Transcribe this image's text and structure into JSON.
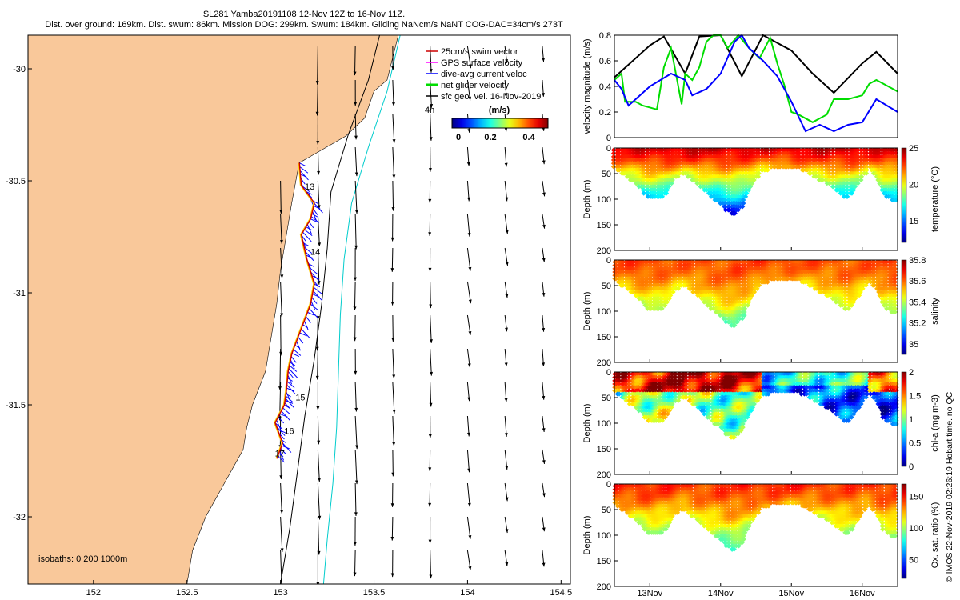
{
  "header": {
    "title": "SL281 Yamba20191108 12-Nov 12Z to 16-Nov 11Z.",
    "stats": "Dist. over ground: 169km. Dist. swum: 86km. Mission DOG: 299km. Swum: 184km. Gliding NaNcm/s NaNT COG-DAC=34cm/s 273T"
  },
  "footer_stamp": "© IMOS 22-Nov-2019 02:26:19 Hobart time. no QC",
  "colors": {
    "land": "#f9c89a",
    "swim": "#cc0000",
    "gps": "#ff00ff",
    "dive_avg": "#0000ff",
    "net_glider": "#00dd00",
    "coast": "#000000",
    "isobath_200": "#000000",
    "isobath_1000": "#00cccc"
  },
  "chart_data": [
    {
      "id": "map",
      "type": "scatter",
      "title": "Glider track and surface geostrophic velocity",
      "xlim": [
        151.65,
        154.55
      ],
      "ylim": [
        -32.3,
        -29.85
      ],
      "xticks": [
        152,
        152.5,
        153,
        153.5,
        154,
        154.5
      ],
      "xtick_labels": [
        "152",
        "152.5",
        "153",
        "153.5",
        "154",
        "154.5"
      ],
      "yticks": [
        -30,
        -30.5,
        -31,
        -31.5,
        -32
      ],
      "ytick_labels": [
        "-30",
        "-30.5",
        "-31",
        "-31.5",
        "-32"
      ],
      "legend": {
        "placement": "top-right",
        "entries": [
          "25cm/s swim vector",
          "GPS surface velocity",
          "dive-avg current veloc",
          "net glider velocity",
          "sfc geo. vel. 16-Nov-2019"
        ]
      },
      "colorbar": {
        "label": "(m/s)",
        "ticks": [
          "0",
          "0.2",
          "0.4"
        ],
        "range": [
          0,
          0.5
        ]
      },
      "isobath_label": "isobaths: 0   200  1000m",
      "day_labels": [
        {
          "text": "13",
          "lon": 153.13,
          "lat": -30.54
        },
        {
          "text": "14",
          "lon": 153.16,
          "lat": -30.83
        },
        {
          "text": "15",
          "lon": 153.08,
          "lat": -31.48
        },
        {
          "text": "16",
          "lon": 153.02,
          "lat": -31.63
        },
        {
          "text": "17",
          "lon": 152.97,
          "lat": -31.73
        }
      ],
      "track": [
        [
          153.1,
          -30.42
        ],
        [
          153.11,
          -30.52
        ],
        [
          153.18,
          -30.6
        ],
        [
          153.16,
          -30.67
        ],
        [
          153.11,
          -30.74
        ],
        [
          153.14,
          -30.85
        ],
        [
          153.18,
          -30.96
        ],
        [
          153.16,
          -31.05
        ],
        [
          153.11,
          -31.16
        ],
        [
          153.06,
          -31.27
        ],
        [
          153.04,
          -31.35
        ],
        [
          153.03,
          -31.44
        ],
        [
          153.02,
          -31.5
        ],
        [
          152.97,
          -31.58
        ],
        [
          153.01,
          -31.67
        ],
        [
          152.98,
          -31.74
        ]
      ],
      "isobath_200": [
        [
          153.53,
          -29.85
        ],
        [
          153.47,
          -30.05
        ],
        [
          153.36,
          -30.3
        ],
        [
          153.27,
          -30.55
        ],
        [
          153.25,
          -30.8
        ],
        [
          153.22,
          -31.05
        ],
        [
          153.18,
          -31.3
        ],
        [
          153.13,
          -31.55
        ],
        [
          153.09,
          -31.8
        ],
        [
          153.05,
          -32.05
        ],
        [
          153.0,
          -32.3
        ]
      ],
      "isobath_1000": [
        [
          153.64,
          -29.85
        ],
        [
          153.57,
          -30.1
        ],
        [
          153.47,
          -30.35
        ],
        [
          153.38,
          -30.6
        ],
        [
          153.34,
          -30.85
        ],
        [
          153.32,
          -31.1
        ],
        [
          153.31,
          -31.35
        ],
        [
          153.3,
          -31.6
        ],
        [
          153.28,
          -31.85
        ],
        [
          153.25,
          -32.1
        ],
        [
          153.23,
          -32.3
        ]
      ],
      "coastline": [
        [
          153.63,
          -29.85
        ],
        [
          153.6,
          -29.95
        ],
        [
          153.57,
          -30.05
        ],
        [
          153.5,
          -30.1
        ],
        [
          153.45,
          -30.22
        ],
        [
          153.35,
          -30.3
        ],
        [
          153.1,
          -30.42
        ],
        [
          153.06,
          -30.6
        ],
        [
          153.03,
          -30.75
        ],
        [
          153.0,
          -30.9
        ],
        [
          152.98,
          -31.05
        ],
        [
          152.95,
          -31.2
        ],
        [
          152.92,
          -31.35
        ],
        [
          152.85,
          -31.5
        ],
        [
          152.82,
          -31.6
        ],
        [
          152.8,
          -31.7
        ],
        [
          152.7,
          -31.85
        ],
        [
          152.6,
          -32.0
        ],
        [
          152.53,
          -32.15
        ],
        [
          152.5,
          -32.3
        ]
      ],
      "vector_grid": {
        "lon": [
          153.0,
          153.2,
          153.4,
          153.6,
          153.8,
          154.0,
          154.2,
          154.4
        ],
        "lat": [
          -29.9,
          -30.05,
          -30.2,
          -30.35,
          -30.5,
          -30.65,
          -30.8,
          -30.95,
          -31.1,
          -31.25,
          -31.4,
          -31.55,
          -31.7,
          -31.85,
          -32.0,
          -32.15,
          -32.3
        ]
      }
    },
    {
      "id": "velocity",
      "type": "line",
      "ylabel": "velocity magnitude (m/s)",
      "xlim": [
        12.5,
        16.5
      ],
      "ylim": [
        0,
        0.8
      ],
      "yticks": [
        0,
        0.2,
        0.4,
        0.6,
        0.8
      ],
      "ytick_labels": [
        "0",
        "0.2",
        "0.4",
        "0.6",
        "0.8"
      ],
      "series": [
        {
          "name": "sfc geo. vel.",
          "color": "#000000",
          "x": [
            12.5,
            13.0,
            13.2,
            13.5,
            13.7,
            14.0,
            14.3,
            14.6,
            15.0,
            15.3,
            15.6,
            16.0,
            16.2,
            16.5
          ],
          "y": [
            0.47,
            0.72,
            0.79,
            0.5,
            0.79,
            0.8,
            0.48,
            0.8,
            0.68,
            0.5,
            0.35,
            0.58,
            0.67,
            0.5
          ]
        },
        {
          "name": "net glider velocity",
          "color": "#00dd00",
          "x": [
            12.5,
            12.6,
            12.65,
            12.8,
            12.9,
            13.1,
            13.2,
            13.3,
            13.45,
            13.5,
            13.6,
            13.7,
            13.8,
            13.9,
            14.0,
            14.1,
            14.25,
            14.4,
            14.55,
            14.7,
            14.8,
            14.9,
            15.0,
            15.1,
            15.3,
            15.5,
            15.6,
            15.8,
            16.0,
            16.1,
            16.2,
            16.3,
            16.5
          ],
          "y": [
            0.45,
            0.5,
            0.28,
            0.28,
            0.25,
            0.22,
            0.55,
            0.7,
            0.26,
            0.5,
            0.45,
            0.55,
            0.75,
            0.8,
            0.8,
            0.7,
            0.8,
            0.7,
            0.62,
            0.78,
            0.58,
            0.41,
            0.2,
            0.18,
            0.12,
            0.18,
            0.3,
            0.3,
            0.33,
            0.42,
            0.45,
            0.42,
            0.36
          ]
        },
        {
          "name": "dive-avg current veloc",
          "color": "#0000ff",
          "x": [
            12.5,
            12.6,
            12.7,
            12.8,
            13.0,
            13.3,
            13.5,
            13.6,
            13.8,
            14.0,
            14.2,
            14.3,
            14.4,
            14.6,
            14.8,
            15.0,
            15.2,
            15.4,
            15.6,
            15.8,
            16.0,
            16.2,
            16.5
          ],
          "y": [
            0.45,
            0.38,
            0.25,
            0.3,
            0.4,
            0.5,
            0.45,
            0.33,
            0.38,
            0.5,
            0.75,
            0.8,
            0.7,
            0.6,
            0.48,
            0.28,
            0.05,
            0.1,
            0.05,
            0.1,
            0.12,
            0.3,
            0.2
          ]
        }
      ]
    },
    {
      "id": "temperature",
      "type": "heatmap",
      "ylabel": "Depth (m)",
      "clabel": "temperature (°C)",
      "clim": [
        12,
        25
      ],
      "cticks": [
        "15",
        "20",
        "25"
      ],
      "ylim": [
        200,
        0
      ],
      "yticks": [
        "0",
        "50",
        "100",
        "150",
        "200"
      ],
      "bottom_depth": [
        [
          12.5,
          40
        ],
        [
          12.8,
          70
        ],
        [
          13.0,
          100
        ],
        [
          13.2,
          95
        ],
        [
          13.35,
          60
        ],
        [
          13.5,
          50
        ],
        [
          13.7,
          75
        ],
        [
          13.9,
          100
        ],
        [
          14.0,
          110
        ],
        [
          14.1,
          125
        ],
        [
          14.2,
          130
        ],
        [
          14.3,
          115
        ],
        [
          14.5,
          60
        ],
        [
          14.6,
          45
        ],
        [
          14.8,
          40
        ],
        [
          15.1,
          40
        ],
        [
          15.3,
          55
        ],
        [
          15.5,
          70
        ],
        [
          15.7,
          90
        ],
        [
          15.8,
          100
        ],
        [
          16.0,
          60
        ],
        [
          16.1,
          40
        ],
        [
          16.2,
          60
        ],
        [
          16.3,
          90
        ],
        [
          16.5,
          110
        ]
      ]
    },
    {
      "id": "salinity",
      "type": "heatmap",
      "ylabel": "Depth (m)",
      "clabel": "salinity",
      "clim": [
        34.9,
        35.8
      ],
      "cticks": [
        "35",
        "35.2",
        "35.4",
        "35.6",
        "35.8"
      ],
      "ylim": [
        200,
        0
      ],
      "yticks": [
        "0",
        "50",
        "100",
        "150",
        "200"
      ]
    },
    {
      "id": "chla",
      "type": "heatmap",
      "ylabel": "Depth (m)",
      "clabel": "chl-a (mg m-3)",
      "clim": [
        0,
        2
      ],
      "cticks": [
        "0",
        "0.5",
        "1",
        "1.5",
        "2"
      ],
      "ylim": [
        200,
        0
      ],
      "yticks": [
        "0",
        "50",
        "100",
        "150",
        "200"
      ]
    },
    {
      "id": "oxygen",
      "type": "heatmap",
      "ylabel": "Depth (m)",
      "clabel": "Ox. sat. ratio (%)",
      "clim": [
        20,
        170
      ],
      "cticks": [
        "50",
        "100",
        "150"
      ],
      "ylim": [
        200,
        0
      ],
      "yticks": [
        "0",
        "50",
        "100",
        "150",
        "200"
      ]
    }
  ],
  "time_axis": {
    "xlim": [
      12.5,
      16.5
    ],
    "ticks": [
      13,
      14,
      15,
      16
    ],
    "labels": [
      "13Nov",
      "14Nov",
      "15Nov",
      "16Nov"
    ]
  }
}
